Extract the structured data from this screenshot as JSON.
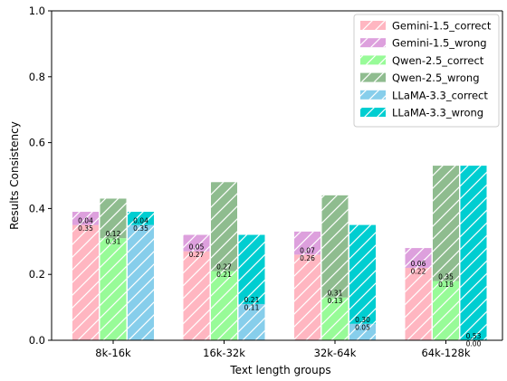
{
  "chart_data": {
    "type": "bar",
    "stacked": true,
    "title": "",
    "xlabel": "Text length groups",
    "ylabel": "Results Consistency",
    "categories": [
      "8k-16k",
      "16k-32k",
      "32k-64k",
      "64k-128k"
    ],
    "ylim": [
      0,
      1.0
    ],
    "yticks": [
      "0.0",
      "0.2",
      "0.4",
      "0.6",
      "0.8",
      "1.0"
    ],
    "grid": false,
    "legend_position": "top-right",
    "models": [
      {
        "name": "Gemini-1.5",
        "correct_name": "Gemini-1.5_correct",
        "wrong_name": "Gemini-1.5_wrong",
        "correct_color": "#ffb6c1",
        "wrong_color": "#dda0dd",
        "correct": [
          0.35,
          0.27,
          0.26,
          0.22
        ],
        "wrong": [
          0.04,
          0.05,
          0.07,
          0.06
        ]
      },
      {
        "name": "Qwen-2.5",
        "correct_name": "Qwen-2.5_correct",
        "wrong_name": "Qwen-2.5_wrong",
        "correct_color": "#98fb98",
        "wrong_color": "#8fbc8f",
        "correct": [
          0.31,
          0.21,
          0.13,
          0.18
        ],
        "wrong": [
          0.12,
          0.27,
          0.31,
          0.35
        ]
      },
      {
        "name": "LLaMA-3.3",
        "correct_name": "LLaMA-3.3_correct",
        "wrong_name": "LLaMA-3.3_wrong",
        "correct_color": "#87ceeb",
        "wrong_color": "#00ced1",
        "correct": [
          0.35,
          0.11,
          0.05,
          0.0
        ],
        "wrong": [
          0.04,
          0.21,
          0.3,
          0.53
        ]
      }
    ]
  }
}
